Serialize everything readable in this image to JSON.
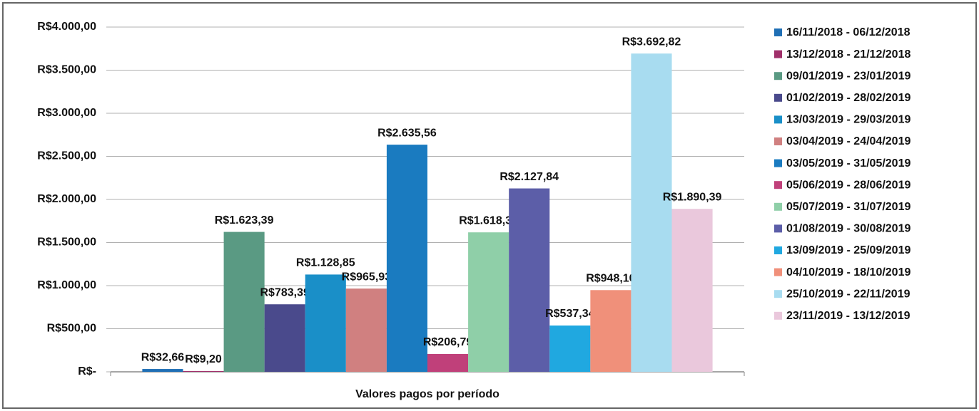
{
  "chart_data": {
    "type": "bar",
    "xlabel": "Valores pagos por período",
    "categories": [
      null
    ],
    "series": [
      {
        "name": "16/11/2018 - 06/12/2018",
        "color": "#1f6fb5",
        "values": [
          32.66
        ],
        "value_labels": [
          "R$32,66"
        ]
      },
      {
        "name": "13/12/2018 - 21/12/2018",
        "color": "#a0306a",
        "values": [
          9.2
        ],
        "value_labels": [
          "R$9,20"
        ]
      },
      {
        "name": "09/01/2019 - 23/01/2019",
        "color": "#5a9a83",
        "values": [
          1623.39
        ],
        "value_labels": [
          "R$1.623,39"
        ]
      },
      {
        "name": "01/02/2019 - 28/02/2019",
        "color": "#4a4a8c",
        "values": [
          783.39
        ],
        "value_labels": [
          "R$783,39"
        ]
      },
      {
        "name": "13/03/2019 - 29/03/2019",
        "color": "#1a8fc8",
        "values": [
          1128.85
        ],
        "value_labels": [
          "R$1.128,85"
        ]
      },
      {
        "name": "03/04/2019 - 24/04/2019",
        "color": "#d08080",
        "values": [
          965.93
        ],
        "value_labels": [
          "R$965,93"
        ]
      },
      {
        "name": "03/05/2019 - 31/05/2019",
        "color": "#1a7bc0",
        "values": [
          2635.56
        ],
        "value_labels": [
          "R$2.635,56"
        ]
      },
      {
        "name": "05/06/2019 - 28/06/2019",
        "color": "#c0407a",
        "values": [
          206.79
        ],
        "value_labels": [
          "R$206,79"
        ]
      },
      {
        "name": "05/07/2019 - 31/07/2019",
        "color": "#8fcfa8",
        "values": [
          1618.32
        ],
        "value_labels": [
          "R$1.618,32"
        ]
      },
      {
        "name": "01/08/2019 - 30/08/2019",
        "color": "#5c5ea8",
        "values": [
          2127.84
        ],
        "value_labels": [
          "R$2.127,84"
        ]
      },
      {
        "name": "13/09/2019 - 25/09/2019",
        "color": "#20a8e0",
        "values": [
          537.34
        ],
        "value_labels": [
          "R$537,34"
        ]
      },
      {
        "name": "04/10/2019 - 18/10/2019",
        "color": "#f0907a",
        "values": [
          948.1
        ],
        "value_labels": [
          "R$948,10"
        ]
      },
      {
        "name": "25/10/2019 - 22/11/2019",
        "color": "#a8dcf0",
        "values": [
          3692.82
        ],
        "value_labels": [
          "R$3.692,82"
        ]
      },
      {
        "name": "23/11/2019 - 13/12/2019",
        "color": "#eac8dc",
        "values": [
          1890.39
        ],
        "value_labels": [
          "R$1.890,39"
        ]
      }
    ],
    "ylim": [
      0,
      4000
    ],
    "yticks": [
      {
        "value": 0,
        "label": "R$-"
      },
      {
        "value": 500,
        "label": "R$500,00"
      },
      {
        "value": 1000,
        "label": "R$1.000,00"
      },
      {
        "value": 1500,
        "label": "R$1.500,00"
      },
      {
        "value": 2000,
        "label": "R$2.000,00"
      },
      {
        "value": 2500,
        "label": "R$2.500,00"
      },
      {
        "value": 3000,
        "label": "R$3.000,00"
      },
      {
        "value": 3500,
        "label": "R$3.500,00"
      },
      {
        "value": 4000,
        "label": "R$4.000,00"
      }
    ],
    "grid": true,
    "legend": "right"
  }
}
